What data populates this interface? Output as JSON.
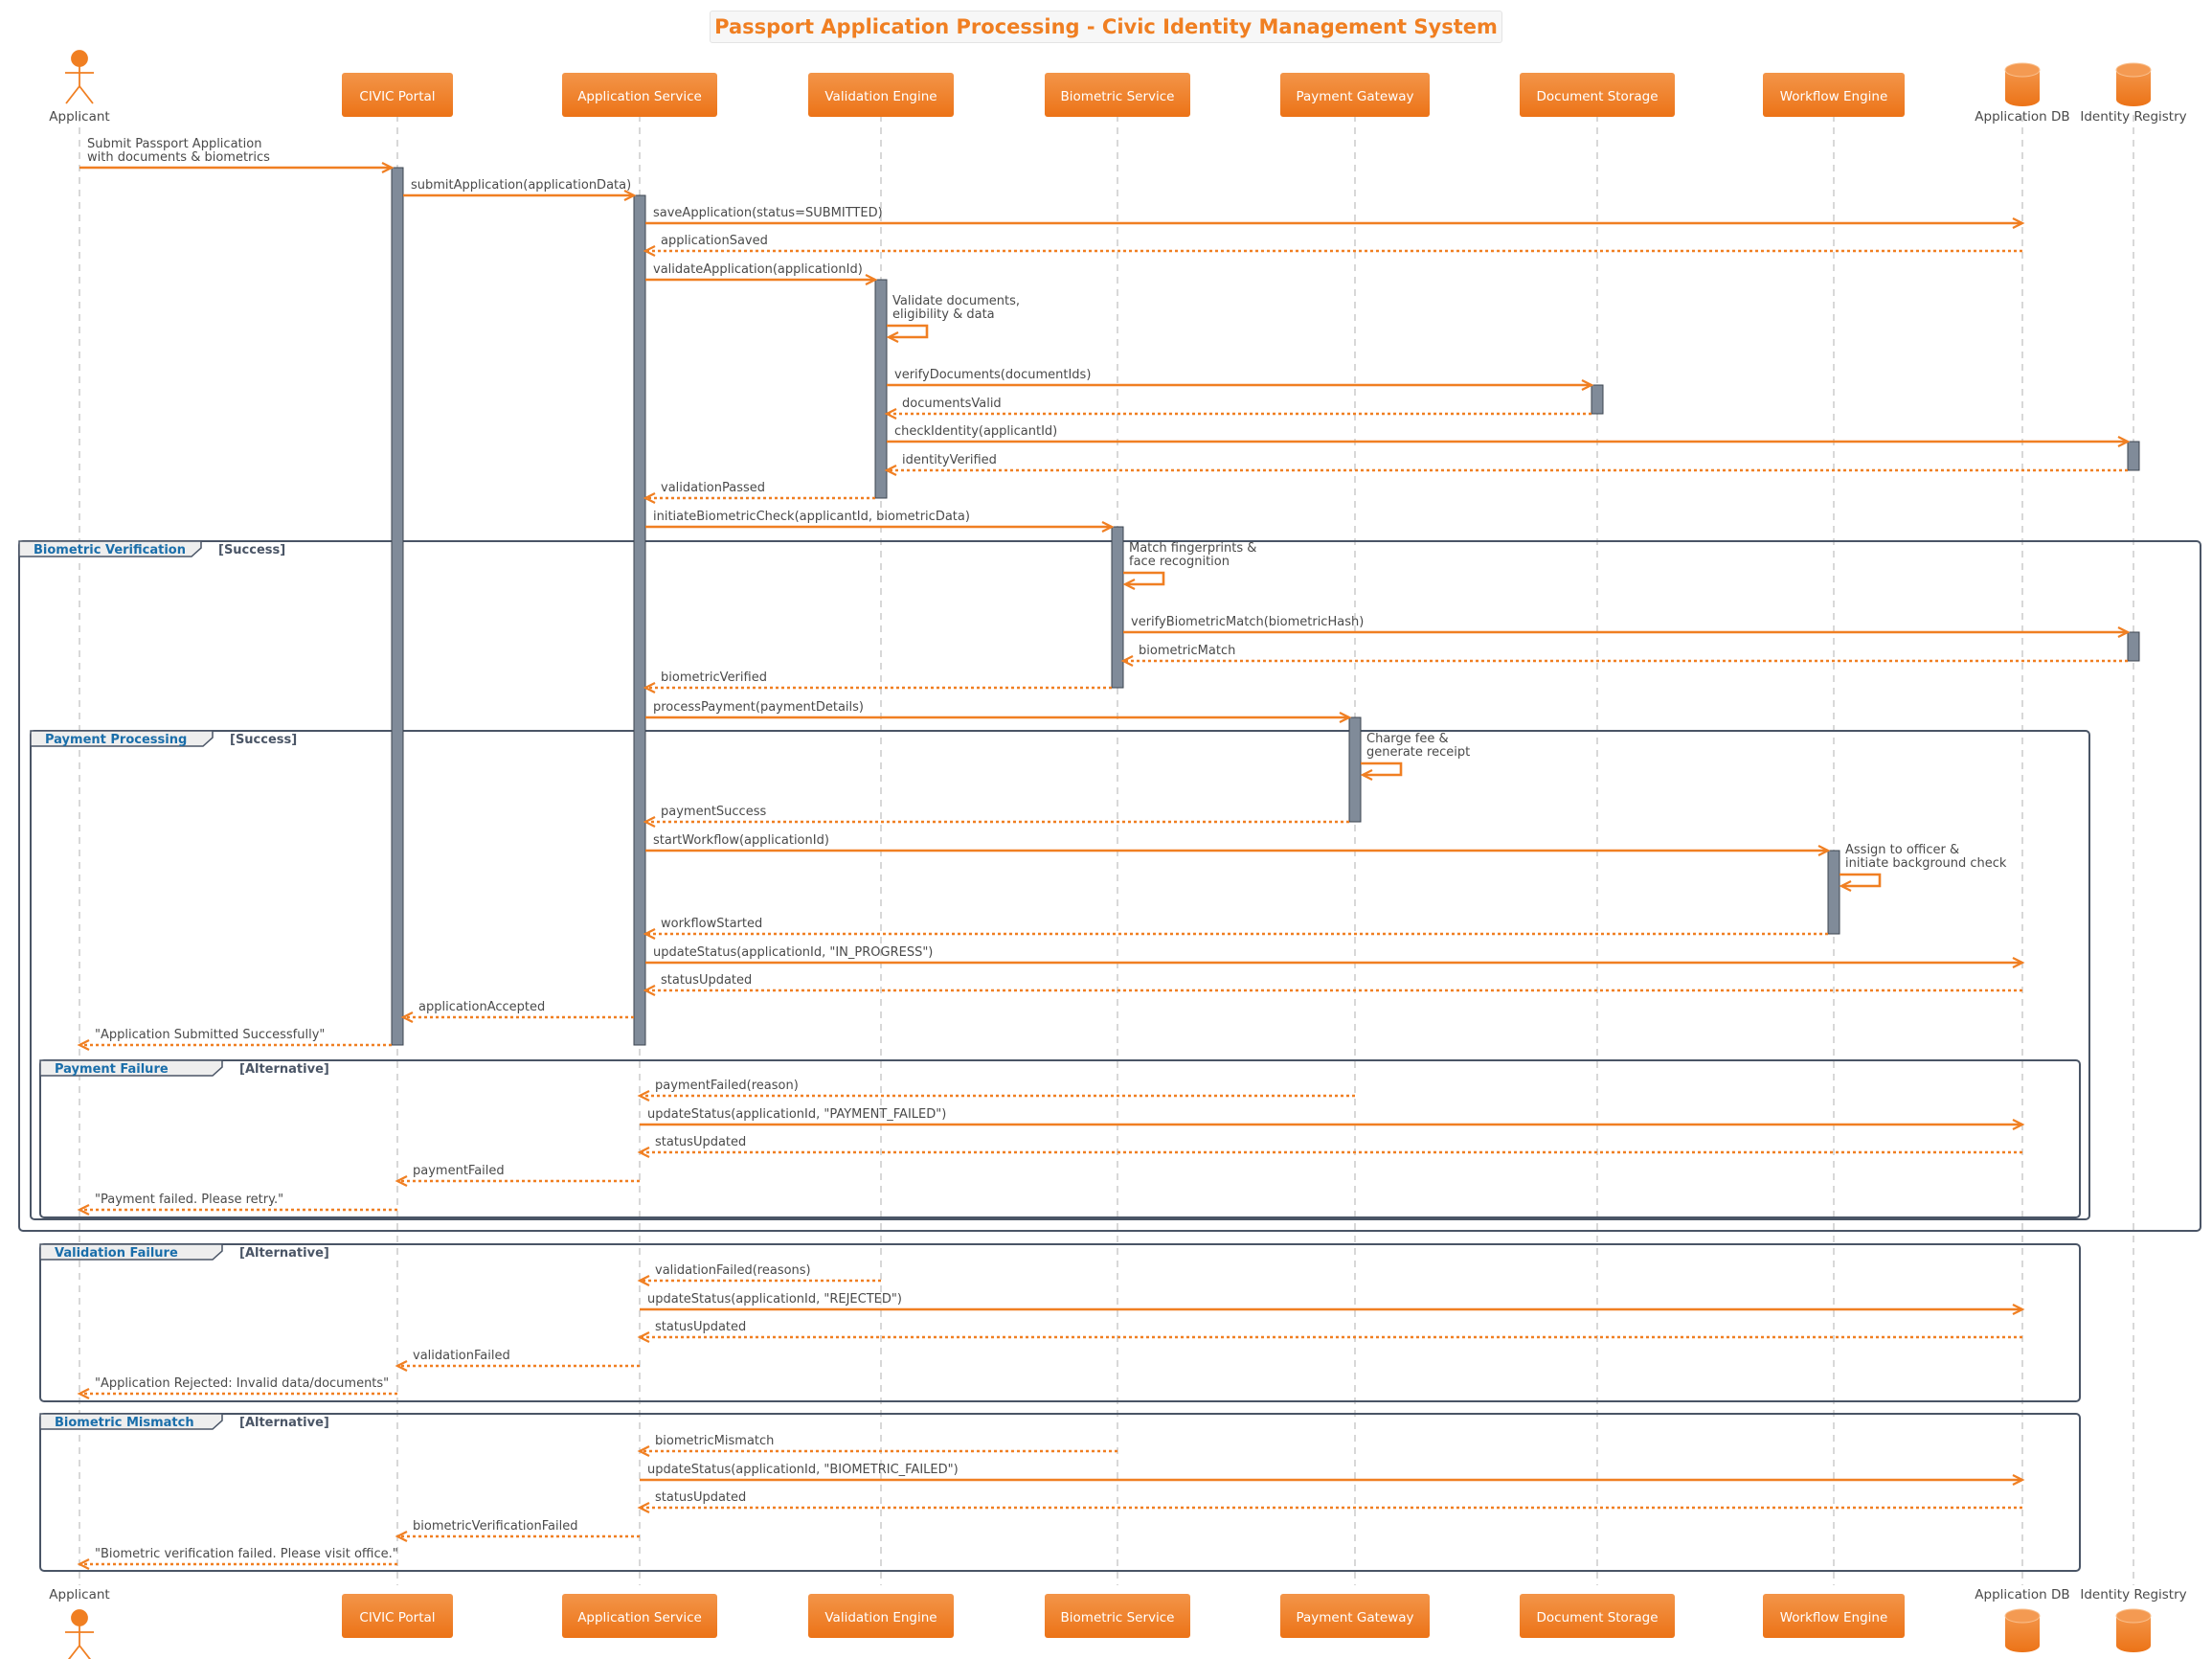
{
  "title": "Passport Application Processing - Civic Identity Management System",
  "colors": {
    "accent": "#f07f22",
    "activation": "#808b99",
    "frame": "#4a5566",
    "frame_label": "#1a6eaa",
    "text": "#4a4a4a",
    "lifeline": "#cccccc"
  },
  "participants": [
    {
      "id": "applicant",
      "label": "Applicant",
      "kind": "actor"
    },
    {
      "id": "portal",
      "label": "CIVIC Portal",
      "kind": "box"
    },
    {
      "id": "appsvc",
      "label": "Application Service",
      "kind": "box"
    },
    {
      "id": "valeng",
      "label": "Validation Engine",
      "kind": "box"
    },
    {
      "id": "biosvc",
      "label": "Biometric Service",
      "kind": "box"
    },
    {
      "id": "paygw",
      "label": "Payment Gateway",
      "kind": "box"
    },
    {
      "id": "docstore",
      "label": "Document Storage",
      "kind": "box"
    },
    {
      "id": "wfeng",
      "label": "Workflow Engine",
      "kind": "box"
    },
    {
      "id": "appdb",
      "label": "Application DB",
      "kind": "database"
    },
    {
      "id": "idreg",
      "label": "Identity Registry",
      "kind": "database"
    }
  ],
  "messages": [
    {
      "from": "applicant",
      "to": "portal",
      "label": [
        "Submit Passport Application",
        "with documents & biometrics"
      ],
      "type": "sync"
    },
    {
      "from": "portal",
      "to": "appsvc",
      "label": [
        "submitApplication(applicationData)"
      ],
      "type": "sync"
    },
    {
      "from": "appsvc",
      "to": "appdb",
      "label": [
        "saveApplication(status=SUBMITTED)"
      ],
      "type": "sync"
    },
    {
      "from": "appdb",
      "to": "appsvc",
      "label": [
        "applicationSaved"
      ],
      "type": "return"
    },
    {
      "from": "appsvc",
      "to": "valeng",
      "label": [
        "validateApplication(applicationId)"
      ],
      "type": "sync"
    },
    {
      "from": "valeng",
      "to": "valeng",
      "label": [
        "Validate documents,",
        "eligibility & data"
      ],
      "type": "self"
    },
    {
      "from": "valeng",
      "to": "docstore",
      "label": [
        "verifyDocuments(documentIds)"
      ],
      "type": "sync"
    },
    {
      "from": "docstore",
      "to": "valeng",
      "label": [
        "documentsValid"
      ],
      "type": "return"
    },
    {
      "from": "valeng",
      "to": "idreg",
      "label": [
        "checkIdentity(applicantId)"
      ],
      "type": "sync"
    },
    {
      "from": "idreg",
      "to": "valeng",
      "label": [
        "identityVerified"
      ],
      "type": "return"
    },
    {
      "from": "valeng",
      "to": "appsvc",
      "label": [
        "validationPassed"
      ],
      "type": "return"
    },
    {
      "from": "appsvc",
      "to": "biosvc",
      "label": [
        "initiateBiometricCheck(applicantId, biometricData)"
      ],
      "type": "sync"
    },
    {
      "from": "biosvc",
      "to": "biosvc",
      "label": [
        "Match fingerprints &",
        "face recognition"
      ],
      "type": "self"
    },
    {
      "from": "biosvc",
      "to": "idreg",
      "label": [
        "verifyBiometricMatch(biometricHash)"
      ],
      "type": "sync"
    },
    {
      "from": "idreg",
      "to": "biosvc",
      "label": [
        "biometricMatch"
      ],
      "type": "return"
    },
    {
      "from": "biosvc",
      "to": "appsvc",
      "label": [
        "biometricVerified"
      ],
      "type": "return"
    },
    {
      "from": "appsvc",
      "to": "paygw",
      "label": [
        "processPayment(paymentDetails)"
      ],
      "type": "sync"
    },
    {
      "from": "paygw",
      "to": "paygw",
      "label": [
        "Charge fee &",
        "generate receipt"
      ],
      "type": "self"
    },
    {
      "from": "paygw",
      "to": "appsvc",
      "label": [
        "paymentSuccess"
      ],
      "type": "return"
    },
    {
      "from": "appsvc",
      "to": "wfeng",
      "label": [
        "startWorkflow(applicationId)"
      ],
      "type": "sync"
    },
    {
      "from": "wfeng",
      "to": "wfeng",
      "label": [
        "Assign to officer &",
        "initiate background check"
      ],
      "type": "self"
    },
    {
      "from": "wfeng",
      "to": "appsvc",
      "label": [
        "workflowStarted"
      ],
      "type": "return"
    },
    {
      "from": "appsvc",
      "to": "appdb",
      "label": [
        "updateStatus(applicationId, \"IN_PROGRESS\")"
      ],
      "type": "sync"
    },
    {
      "from": "appdb",
      "to": "appsvc",
      "label": [
        "statusUpdated"
      ],
      "type": "return"
    },
    {
      "from": "appsvc",
      "to": "portal",
      "label": [
        "applicationAccepted"
      ],
      "type": "return"
    },
    {
      "from": "portal",
      "to": "applicant",
      "label": [
        "\"Application Submitted Successfully\""
      ],
      "type": "return"
    },
    {
      "from": "paygw",
      "to": "appsvc",
      "label": [
        "paymentFailed(reason)"
      ],
      "type": "return"
    },
    {
      "from": "appsvc",
      "to": "appdb",
      "label": [
        "updateStatus(applicationId, \"PAYMENT_FAILED\")"
      ],
      "type": "sync"
    },
    {
      "from": "appdb",
      "to": "appsvc",
      "label": [
        "statusUpdated"
      ],
      "type": "return"
    },
    {
      "from": "appsvc",
      "to": "portal",
      "label": [
        "paymentFailed"
      ],
      "type": "return"
    },
    {
      "from": "portal",
      "to": "applicant",
      "label": [
        "\"Payment failed. Please retry.\""
      ],
      "type": "return"
    },
    {
      "from": "valeng",
      "to": "appsvc",
      "label": [
        "validationFailed(reasons)"
      ],
      "type": "return"
    },
    {
      "from": "appsvc",
      "to": "appdb",
      "label": [
        "updateStatus(applicationId, \"REJECTED\")"
      ],
      "type": "sync"
    },
    {
      "from": "appdb",
      "to": "appsvc",
      "label": [
        "statusUpdated"
      ],
      "type": "return"
    },
    {
      "from": "appsvc",
      "to": "portal",
      "label": [
        "validationFailed"
      ],
      "type": "return"
    },
    {
      "from": "portal",
      "to": "applicant",
      "label": [
        "\"Application Rejected: Invalid data/documents\""
      ],
      "type": "return"
    },
    {
      "from": "biosvc",
      "to": "appsvc",
      "label": [
        "biometricMismatch"
      ],
      "type": "return"
    },
    {
      "from": "appsvc",
      "to": "appdb",
      "label": [
        "updateStatus(applicationId, \"BIOMETRIC_FAILED\")"
      ],
      "type": "sync"
    },
    {
      "from": "appdb",
      "to": "appsvc",
      "label": [
        "statusUpdated"
      ],
      "type": "return"
    },
    {
      "from": "appsvc",
      "to": "portal",
      "label": [
        "biometricVerificationFailed"
      ],
      "type": "return"
    },
    {
      "from": "portal",
      "to": "applicant",
      "label": [
        "\"Biometric verification failed. Please visit office.\""
      ],
      "type": "return"
    }
  ],
  "fragments": [
    {
      "name": "Biometric Verification",
      "guard": "[Success]"
    },
    {
      "name": "Payment Processing",
      "guard": "[Success]"
    },
    {
      "name": "Payment Failure",
      "guard": "[Alternative]"
    },
    {
      "name": "Validation Failure",
      "guard": "[Alternative]"
    },
    {
      "name": "Biometric Mismatch",
      "guard": "[Alternative]"
    }
  ]
}
